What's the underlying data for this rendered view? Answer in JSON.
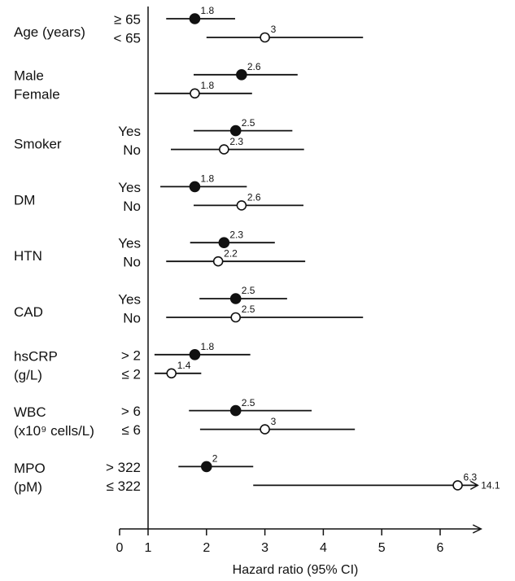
{
  "chart_data": {
    "type": "forest",
    "x_label": "Hazard ratio (95% CI)",
    "xlim": [
      0,
      6.7
    ],
    "xticks": [
      0,
      1,
      2,
      3,
      4,
      5,
      6
    ],
    "reference": 1,
    "groups": [
      {
        "label": [
          "Age (years)"
        ],
        "rows": [
          {
            "label": "≥ 65",
            "estimate": 1.8,
            "lo": 1.31,
            "hi": 2.49,
            "filled": true
          },
          {
            "label": "< 65",
            "estimate": 3.0,
            "lo": 2.0,
            "hi": 4.68,
            "filled": false
          }
        ]
      },
      {
        "label": [],
        "rows": [
          {
            "label": "Male",
            "estimate": 2.6,
            "lo": 1.78,
            "hi": 3.56,
            "filled": true
          },
          {
            "label": "Female",
            "estimate": 1.8,
            "lo": 1.11,
            "hi": 2.78,
            "filled": false
          }
        ]
      },
      {
        "label": [
          "Smoker"
        ],
        "rows": [
          {
            "label": "Yes",
            "estimate": 2.5,
            "lo": 1.78,
            "hi": 3.47,
            "filled": true
          },
          {
            "label": "No",
            "estimate": 2.3,
            "lo": 1.39,
            "hi": 3.67,
            "filled": false
          }
        ]
      },
      {
        "label": [
          "DM"
        ],
        "rows": [
          {
            "label": "Yes",
            "estimate": 1.8,
            "lo": 1.21,
            "hi": 2.69,
            "filled": true
          },
          {
            "label": "No",
            "estimate": 2.6,
            "lo": 1.78,
            "hi": 3.66,
            "filled": false
          }
        ]
      },
      {
        "label": [
          "HTN"
        ],
        "rows": [
          {
            "label": "Yes",
            "estimate": 2.3,
            "lo": 1.72,
            "hi": 3.17,
            "filled": true
          },
          {
            "label": "No",
            "estimate": 2.2,
            "lo": 1.31,
            "hi": 3.69,
            "filled": false
          }
        ]
      },
      {
        "label": [
          "CAD"
        ],
        "rows": [
          {
            "label": "Yes",
            "estimate": 2.5,
            "lo": 1.88,
            "hi": 3.38,
            "filled": true
          },
          {
            "label": "No",
            "estimate": 2.5,
            "lo": 1.31,
            "hi": 4.68,
            "filled": false
          }
        ]
      },
      {
        "label": [
          "hsCRP",
          "(g/L)"
        ],
        "rows": [
          {
            "label": "> 2",
            "estimate": 1.8,
            "lo": 1.11,
            "hi": 2.75,
            "filled": true
          },
          {
            "label": "≤ 2",
            "estimate": 1.4,
            "lo": 1.11,
            "hi": 1.91,
            "filled": false
          }
        ]
      },
      {
        "label": [
          "WBC",
          "(x10⁹ cells/L)"
        ],
        "rows": [
          {
            "label": "> 6",
            "estimate": 2.5,
            "lo": 1.7,
            "hi": 3.8,
            "filled": true
          },
          {
            "label": "≤ 6",
            "estimate": 3.0,
            "lo": 1.89,
            "hi": 4.54,
            "filled": false
          }
        ]
      },
      {
        "label": [
          "MPO",
          "(pM)"
        ],
        "rows": [
          {
            "label": "> 322",
            "estimate": 2.0,
            "lo": 1.52,
            "hi": 2.8,
            "filled": true
          },
          {
            "label": "≤ 322",
            "estimate": 6.3,
            "lo": 2.8,
            "hi": 14.1,
            "filled": false
          }
        ]
      }
    ]
  }
}
